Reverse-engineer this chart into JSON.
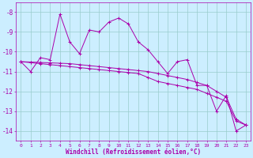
{
  "xlabel": "Windchill (Refroidissement éolien,°C)",
  "background_color": "#cceeff",
  "grid_color": "#99cccc",
  "line_color": "#aa00aa",
  "x_values": [
    0,
    1,
    2,
    3,
    4,
    5,
    6,
    7,
    8,
    9,
    10,
    11,
    12,
    13,
    14,
    15,
    16,
    17,
    18,
    19,
    20,
    21,
    22,
    23
  ],
  "series1": [
    -10.5,
    -11.0,
    -10.3,
    -10.4,
    -8.1,
    -9.5,
    -10.1,
    -8.9,
    -9.0,
    -8.5,
    -8.3,
    -8.6,
    -9.5,
    -9.9,
    -10.5,
    -11.1,
    -10.5,
    -10.4,
    -11.7,
    -11.7,
    -13.0,
    -12.2,
    -14.0,
    -13.7
  ],
  "series2": [
    -10.5,
    -10.55,
    -10.6,
    -10.65,
    -10.7,
    -10.75,
    -10.8,
    -10.85,
    -10.9,
    -10.95,
    -11.0,
    -11.05,
    -11.1,
    -11.3,
    -11.5,
    -11.6,
    -11.7,
    -11.8,
    -11.9,
    -12.1,
    -12.3,
    -12.5,
    -13.5,
    -13.7
  ],
  "series3": [
    -10.5,
    -10.52,
    -10.54,
    -10.56,
    -10.58,
    -10.6,
    -10.65,
    -10.7,
    -10.75,
    -10.8,
    -10.85,
    -10.9,
    -10.95,
    -11.0,
    -11.1,
    -11.2,
    -11.3,
    -11.4,
    -11.55,
    -11.7,
    -12.0,
    -12.3,
    -13.4,
    -13.7
  ],
  "ylim": [
    -14.5,
    -7.5
  ],
  "yticks": [
    -8,
    -9,
    -10,
    -11,
    -12,
    -13,
    -14
  ],
  "xlim": [
    -0.5,
    23.5
  ],
  "xticks": [
    0,
    1,
    2,
    3,
    4,
    5,
    6,
    7,
    8,
    9,
    10,
    11,
    12,
    13,
    14,
    15,
    16,
    17,
    18,
    19,
    20,
    21,
    22,
    23
  ]
}
